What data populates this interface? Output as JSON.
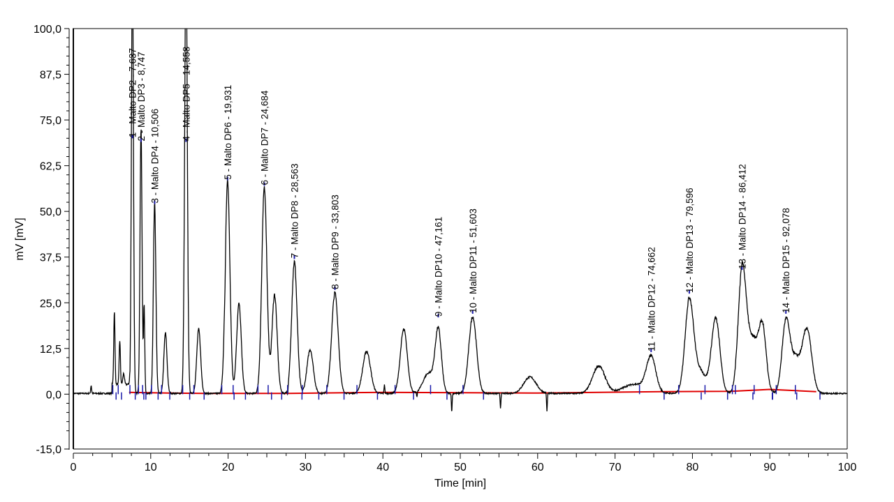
{
  "chart_data": {
    "type": "line",
    "title": "",
    "xlabel": "Time [min]",
    "ylabel": "mV [mV]",
    "xlim": [
      0,
      100
    ],
    "ylim": [
      -15,
      100
    ],
    "x_ticks": [
      "0",
      "10",
      "20",
      "30",
      "40",
      "50",
      "60",
      "70",
      "80",
      "90",
      "100"
    ],
    "y_ticks": [
      {
        "v": 100,
        "label": "100,0"
      },
      {
        "v": 87.5,
        "label": "87,5"
      },
      {
        "v": 75,
        "label": "75,0"
      },
      {
        "v": 62.5,
        "label": "62,5"
      },
      {
        "v": 50,
        "label": "50,0"
      },
      {
        "v": 37.5,
        "label": "37,5"
      },
      {
        "v": 25,
        "label": "25,0"
      },
      {
        "v": 12.5,
        "label": "12,5"
      },
      {
        "v": 0,
        "label": "0,0"
      },
      {
        "v": -15,
        "label": "-15,0"
      }
    ],
    "grid": false,
    "series": [
      {
        "name": "signal",
        "color": "#000000"
      },
      {
        "name": "baseline",
        "color": "#e00000"
      }
    ],
    "peaks": [
      {
        "t": 2.3,
        "h": 2.2,
        "w": 0.06
      },
      {
        "t": 5.3,
        "h": 20,
        "w": 0.08
      },
      {
        "t": 6.0,
        "h": 12,
        "w": 0.08
      },
      {
        "t": 6.5,
        "h": 3,
        "w": 0.1
      },
      {
        "t": 7.637,
        "h": 120,
        "w": 0.13
      },
      {
        "t": 8.747,
        "h": 73,
        "w": 0.13
      },
      {
        "t": 9.15,
        "h": 24,
        "w": 0.08
      },
      {
        "t": 10.506,
        "h": 52,
        "w": 0.16
      },
      {
        "t": 11.9,
        "h": 16.5,
        "w": 0.2
      },
      {
        "t": 14.558,
        "h": 120,
        "w": 0.17
      },
      {
        "t": 16.2,
        "h": 17.5,
        "w": 0.25
      },
      {
        "t": 19.931,
        "h": 58,
        "w": 0.3
      },
      {
        "t": 21.4,
        "h": 24.5,
        "w": 0.3
      },
      {
        "t": 24.684,
        "h": 56.5,
        "w": 0.33
      },
      {
        "t": 26.0,
        "h": 27,
        "w": 0.33
      },
      {
        "t": 28.563,
        "h": 36,
        "w": 0.35
      },
      {
        "t": 30.6,
        "h": 12,
        "w": 0.4
      },
      {
        "t": 33.803,
        "h": 27.5,
        "w": 0.42
      },
      {
        "t": 37.9,
        "h": 11.5,
        "w": 0.5
      },
      {
        "t": 42.7,
        "h": 17.5,
        "w": 0.45
      },
      {
        "t": 45.9,
        "h": 5.5,
        "w": 0.7
      },
      {
        "t": 47.161,
        "h": 17,
        "w": 0.4
      },
      {
        "t": 51.603,
        "h": 21,
        "w": 0.5
      },
      {
        "t": 59.0,
        "h": 4.5,
        "w": 0.8
      },
      {
        "t": 67.9,
        "h": 7.5,
        "w": 0.8
      },
      {
        "t": 72.5,
        "h": 2.5,
        "w": 1.5
      },
      {
        "t": 74.662,
        "h": 9.5,
        "w": 0.6
      },
      {
        "t": 79.596,
        "h": 25.5,
        "w": 0.55
      },
      {
        "t": 81.0,
        "h": 6,
        "w": 0.7
      },
      {
        "t": 83.0,
        "h": 20.5,
        "w": 0.55
      },
      {
        "t": 86.412,
        "h": 31,
        "w": 0.5
      },
      {
        "t": 87.8,
        "h": 15,
        "w": 0.9
      },
      {
        "t": 89.1,
        "h": 14,
        "w": 0.45
      },
      {
        "t": 92.078,
        "h": 19.5,
        "w": 0.5
      },
      {
        "t": 93.3,
        "h": 9,
        "w": 0.6
      },
      {
        "t": 94.8,
        "h": 17.5,
        "w": 0.6
      }
    ],
    "spikes": [
      {
        "t": 19.6,
        "h": -2.5
      },
      {
        "t": 27.7,
        "h": -2
      },
      {
        "t": 40.2,
        "h": 2.5
      },
      {
        "t": 44.4,
        "h": -1.5
      },
      {
        "t": 48.9,
        "h": -5
      },
      {
        "t": 55.2,
        "h": -4
      },
      {
        "t": 61.2,
        "h": -5
      }
    ],
    "baseline": [
      [
        7.2,
        0.5
      ],
      [
        12.3,
        0.3
      ],
      [
        16.9,
        0.2
      ],
      [
        27.8,
        0.2
      ],
      [
        40,
        0.5
      ],
      [
        60,
        0.3
      ],
      [
        76,
        0.7
      ],
      [
        85,
        0.8
      ],
      [
        90,
        1.3
      ],
      [
        96,
        0.7
      ]
    ],
    "peak_labels": [
      {
        "t": 7.637,
        "h": 70,
        "label": "1 - Malto DP2 - 7,637"
      },
      {
        "t": 8.747,
        "h": 69,
        "label": "2 - Malto DP3 - 8,747"
      },
      {
        "t": 10.506,
        "h": 52,
        "label": "3 - Malto DP4 - 10,506"
      },
      {
        "t": 14.558,
        "h": 69,
        "label": "4 - Malto DP5 - 14,558"
      },
      {
        "t": 19.931,
        "h": 58.5,
        "label": "5 - Malto DP6 - 19,931"
      },
      {
        "t": 24.684,
        "h": 57,
        "label": "6 - Malto DP7 - 24,684"
      },
      {
        "t": 28.563,
        "h": 37,
        "label": "7 - Malto DP8 - 28,563"
      },
      {
        "t": 33.803,
        "h": 28.5,
        "label": "8 - Malto DP9 - 33,803"
      },
      {
        "t": 47.161,
        "h": 21,
        "label": "9 - Malto DP10 - 47,161"
      },
      {
        "t": 51.603,
        "h": 22,
        "label": "10 - Malto DP11 - 51,603"
      },
      {
        "t": 74.662,
        "h": 11.5,
        "label": "11 - Malto DP12 - 74,662"
      },
      {
        "t": 79.596,
        "h": 27.5,
        "label": "12 - Malto DP13 - 79,596"
      },
      {
        "t": 86.412,
        "h": 34,
        "label": "13 - Malto DP14 - 86,412"
      },
      {
        "t": 92.078,
        "h": 22,
        "label": "14 - Malto DP15 - 92,078"
      }
    ]
  }
}
